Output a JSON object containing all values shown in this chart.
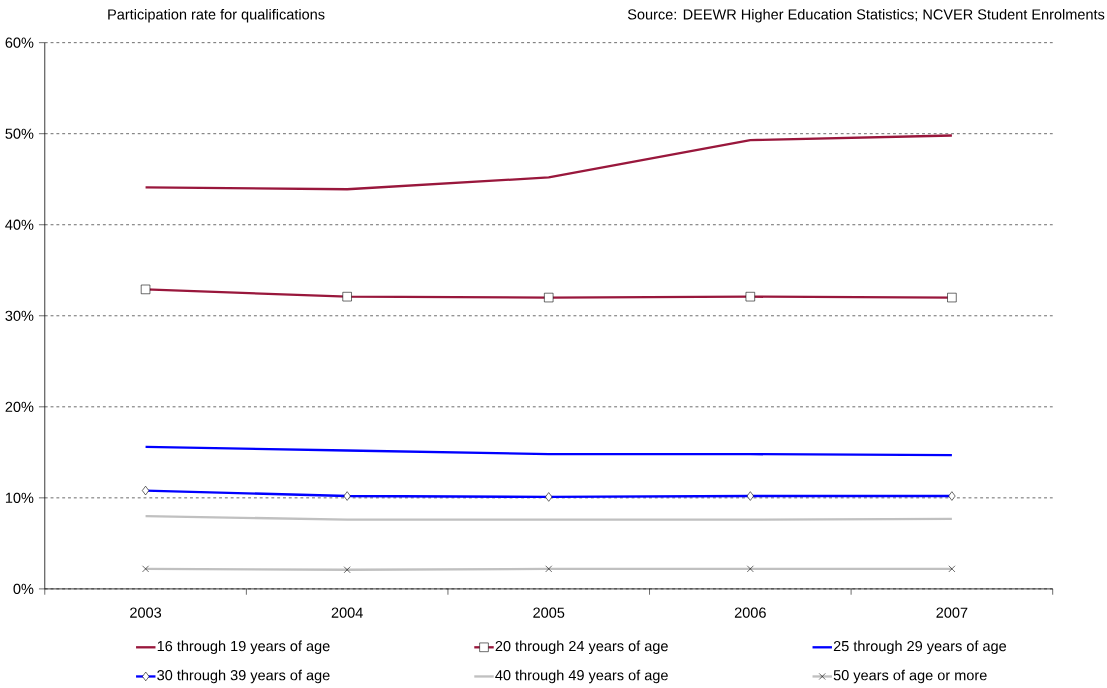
{
  "chart_data": {
    "type": "line",
    "title": "Participation rate for qualifications",
    "annotations": [
      "Source: DEEWR Higher Education Statistics;  NCVER Student Enrolments"
    ],
    "categories": [
      "2003",
      "2004",
      "2005",
      "2006",
      "2007"
    ],
    "series": [
      {
        "name": "16 through 19 years of age",
        "color": "#99173c",
        "marker": "none",
        "values": [
          44.1,
          43.9,
          45.2,
          49.3,
          49.8
        ]
      },
      {
        "name": "20 through 24 years of age",
        "color": "#99173c",
        "marker": "square",
        "values": [
          32.9,
          32.1,
          32.0,
          32.1,
          32.0
        ]
      },
      {
        "name": "25 through 29 years of age",
        "color": "#0000ff",
        "marker": "none",
        "values": [
          15.6,
          15.2,
          14.8,
          14.8,
          14.7
        ]
      },
      {
        "name": "30 through 39 years of age",
        "color": "#0000ff",
        "marker": "diamond",
        "values": [
          10.8,
          10.2,
          10.1,
          10.2,
          10.2
        ]
      },
      {
        "name": "40 through 49 years of age",
        "color": "#c0c0c0",
        "marker": "none",
        "values": [
          8.0,
          7.6,
          7.6,
          7.6,
          7.7
        ]
      },
      {
        "name": "50 years of age or more",
        "color": "#c0c0c0",
        "marker": "cross",
        "values": [
          2.2,
          2.1,
          2.2,
          2.2,
          2.2
        ]
      }
    ],
    "ylim": [
      0,
      60
    ],
    "yticks": [
      {
        "value": 0,
        "label": "0%"
      },
      {
        "value": 10,
        "label": "10%"
      },
      {
        "value": 20,
        "label": "20%"
      },
      {
        "value": 30,
        "label": "30%"
      },
      {
        "value": 40,
        "label": "40%"
      },
      {
        "value": 50,
        "label": "50%"
      },
      {
        "value": 60,
        "label": "60%"
      }
    ],
    "grid": "y",
    "legend": "bottom",
    "line_style": "solid"
  }
}
